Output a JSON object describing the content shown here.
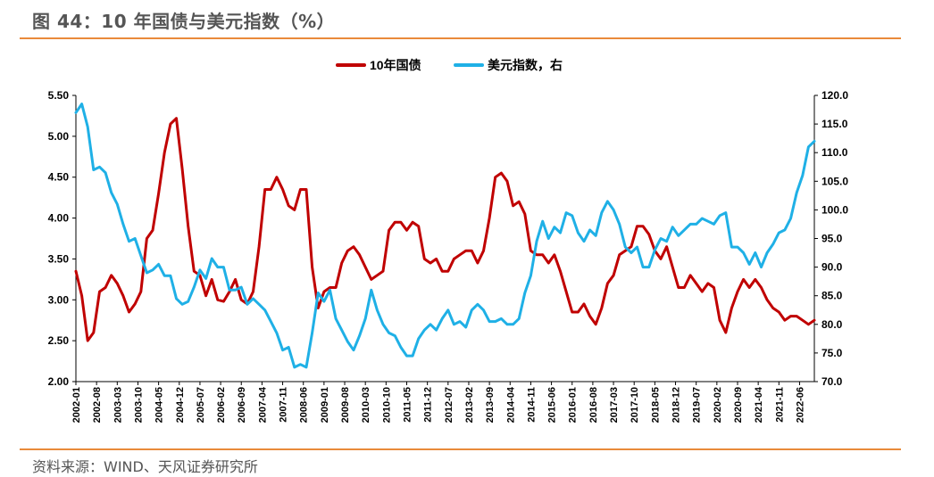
{
  "figure": {
    "title": "图 44：10 年国债与美元指数（%）",
    "source": "资料来源：WIND、天风证券研究所"
  },
  "colors": {
    "bond": "#c00000",
    "dxy": "#1fb0e6",
    "rule": "#e98a3a",
    "axis": "#000000"
  },
  "chart_data": {
    "type": "line",
    "legend_position": "top-center",
    "grid": false,
    "y_left": {
      "range": [
        2.0,
        5.5
      ],
      "ticks": [
        "2.00",
        "2.50",
        "3.00",
        "3.50",
        "4.00",
        "4.50",
        "5.00",
        "5.50"
      ]
    },
    "y_right": {
      "range": [
        70.0,
        120.0
      ],
      "ticks": [
        "70.0",
        "75.0",
        "80.0",
        "85.0",
        "90.0",
        "95.0",
        "100.0",
        "105.0",
        "110.0",
        "115.0",
        "120.0"
      ]
    },
    "x_ticks": [
      "2002-01",
      "2002-08",
      "2003-03",
      "2003-10",
      "2004-05",
      "2004-12",
      "2005-07",
      "2006-02",
      "2006-09",
      "2007-04",
      "2007-11",
      "2008-06",
      "2009-01",
      "2009-08",
      "2010-03",
      "2010-10",
      "2011-05",
      "2011-12",
      "2012-07",
      "2013-02",
      "2013-09",
      "2014-04",
      "2014-11",
      "2015-06",
      "2016-01",
      "2016-08",
      "2017-03",
      "2017-10",
      "2018-05",
      "2018-12",
      "2019-07",
      "2020-02",
      "2020-09",
      "2021-04",
      "2021-11",
      "2022-06"
    ],
    "series": [
      {
        "name": "10年国债",
        "axis": "left",
        "points": [
          [
            "2002-01",
            3.35
          ],
          [
            "2002-03",
            3.05
          ],
          [
            "2002-05",
            2.5
          ],
          [
            "2002-07",
            2.6
          ],
          [
            "2002-09",
            3.1
          ],
          [
            "2002-11",
            3.15
          ],
          [
            "2003-01",
            3.3
          ],
          [
            "2003-03",
            3.2
          ],
          [
            "2003-05",
            3.05
          ],
          [
            "2003-07",
            2.85
          ],
          [
            "2003-09",
            2.95
          ],
          [
            "2003-11",
            3.1
          ],
          [
            "2004-01",
            3.75
          ],
          [
            "2004-03",
            3.85
          ],
          [
            "2004-05",
            4.3
          ],
          [
            "2004-07",
            4.8
          ],
          [
            "2004-09",
            5.15
          ],
          [
            "2004-11",
            5.22
          ],
          [
            "2005-01",
            4.6
          ],
          [
            "2005-03",
            3.9
          ],
          [
            "2005-05",
            3.35
          ],
          [
            "2005-07",
            3.3
          ],
          [
            "2005-09",
            3.05
          ],
          [
            "2005-11",
            3.25
          ],
          [
            "2006-01",
            3.0
          ],
          [
            "2006-03",
            2.98
          ],
          [
            "2006-05",
            3.1
          ],
          [
            "2006-07",
            3.25
          ],
          [
            "2006-09",
            3.0
          ],
          [
            "2006-11",
            2.95
          ],
          [
            "2007-01",
            3.1
          ],
          [
            "2007-03",
            3.65
          ],
          [
            "2007-05",
            4.35
          ],
          [
            "2007-07",
            4.35
          ],
          [
            "2007-09",
            4.5
          ],
          [
            "2007-11",
            4.35
          ],
          [
            "2008-01",
            4.15
          ],
          [
            "2008-03",
            4.1
          ],
          [
            "2008-05",
            4.35
          ],
          [
            "2008-07",
            4.35
          ],
          [
            "2008-09",
            3.4
          ],
          [
            "2008-11",
            2.9
          ],
          [
            "2009-01",
            3.1
          ],
          [
            "2009-03",
            3.15
          ],
          [
            "2009-05",
            3.15
          ],
          [
            "2009-07",
            3.45
          ],
          [
            "2009-09",
            3.6
          ],
          [
            "2009-11",
            3.65
          ],
          [
            "2010-01",
            3.55
          ],
          [
            "2010-03",
            3.4
          ],
          [
            "2010-05",
            3.25
          ],
          [
            "2010-07",
            3.3
          ],
          [
            "2010-09",
            3.35
          ],
          [
            "2010-11",
            3.85
          ],
          [
            "2011-01",
            3.95
          ],
          [
            "2011-03",
            3.95
          ],
          [
            "2011-05",
            3.85
          ],
          [
            "2011-07",
            3.95
          ],
          [
            "2011-09",
            3.9
          ],
          [
            "2011-11",
            3.5
          ],
          [
            "2012-01",
            3.45
          ],
          [
            "2012-03",
            3.5
          ],
          [
            "2012-05",
            3.35
          ],
          [
            "2012-07",
            3.35
          ],
          [
            "2012-09",
            3.5
          ],
          [
            "2012-11",
            3.55
          ],
          [
            "2013-01",
            3.6
          ],
          [
            "2013-03",
            3.6
          ],
          [
            "2013-05",
            3.45
          ],
          [
            "2013-07",
            3.6
          ],
          [
            "2013-09",
            4.0
          ],
          [
            "2013-11",
            4.5
          ],
          [
            "2014-01",
            4.55
          ],
          [
            "2014-03",
            4.45
          ],
          [
            "2014-05",
            4.15
          ],
          [
            "2014-07",
            4.2
          ],
          [
            "2014-09",
            4.05
          ],
          [
            "2014-11",
            3.6
          ],
          [
            "2015-01",
            3.55
          ],
          [
            "2015-03",
            3.55
          ],
          [
            "2015-05",
            3.45
          ],
          [
            "2015-07",
            3.55
          ],
          [
            "2015-09",
            3.35
          ],
          [
            "2015-11",
            3.1
          ],
          [
            "2016-01",
            2.85
          ],
          [
            "2016-03",
            2.85
          ],
          [
            "2016-05",
            2.95
          ],
          [
            "2016-07",
            2.8
          ],
          [
            "2016-09",
            2.7
          ],
          [
            "2016-11",
            2.9
          ],
          [
            "2017-01",
            3.2
          ],
          [
            "2017-03",
            3.3
          ],
          [
            "2017-05",
            3.55
          ],
          [
            "2017-07",
            3.6
          ],
          [
            "2017-09",
            3.65
          ],
          [
            "2017-11",
            3.9
          ],
          [
            "2018-01",
            3.9
          ],
          [
            "2018-03",
            3.8
          ],
          [
            "2018-05",
            3.6
          ],
          [
            "2018-07",
            3.5
          ],
          [
            "2018-09",
            3.65
          ],
          [
            "2018-11",
            3.4
          ],
          [
            "2019-01",
            3.15
          ],
          [
            "2019-03",
            3.15
          ],
          [
            "2019-05",
            3.3
          ],
          [
            "2019-07",
            3.2
          ],
          [
            "2019-09",
            3.1
          ],
          [
            "2019-11",
            3.2
          ],
          [
            "2020-01",
            3.15
          ],
          [
            "2020-03",
            2.75
          ],
          [
            "2020-05",
            2.6
          ],
          [
            "2020-07",
            2.9
          ],
          [
            "2020-09",
            3.1
          ],
          [
            "2020-11",
            3.25
          ],
          [
            "2021-01",
            3.15
          ],
          [
            "2021-03",
            3.25
          ],
          [
            "2021-05",
            3.15
          ],
          [
            "2021-07",
            3.0
          ],
          [
            "2021-09",
            2.9
          ],
          [
            "2021-11",
            2.85
          ],
          [
            "2022-01",
            2.75
          ],
          [
            "2022-03",
            2.8
          ],
          [
            "2022-05",
            2.8
          ],
          [
            "2022-07",
            2.75
          ],
          [
            "2022-09",
            2.7
          ],
          [
            "2022-11",
            2.75
          ]
        ]
      },
      {
        "name": "美元指数，右",
        "axis": "right",
        "points": [
          [
            "2002-01",
            117.0
          ],
          [
            "2002-03",
            118.5
          ],
          [
            "2002-05",
            114.5
          ],
          [
            "2002-07",
            107.0
          ],
          [
            "2002-09",
            107.5
          ],
          [
            "2002-11",
            106.5
          ],
          [
            "2003-01",
            103.0
          ],
          [
            "2003-03",
            101.0
          ],
          [
            "2003-05",
            97.5
          ],
          [
            "2003-07",
            94.5
          ],
          [
            "2003-09",
            95.0
          ],
          [
            "2003-11",
            92.0
          ],
          [
            "2004-01",
            89.0
          ],
          [
            "2004-03",
            89.5
          ],
          [
            "2004-05",
            90.5
          ],
          [
            "2004-07",
            88.5
          ],
          [
            "2004-09",
            88.5
          ],
          [
            "2004-11",
            84.5
          ],
          [
            "2005-01",
            83.5
          ],
          [
            "2005-03",
            84.0
          ],
          [
            "2005-05",
            86.5
          ],
          [
            "2005-07",
            89.5
          ],
          [
            "2005-09",
            88.0
          ],
          [
            "2005-11",
            91.5
          ],
          [
            "2006-01",
            90.0
          ],
          [
            "2006-03",
            90.0
          ],
          [
            "2006-05",
            86.0
          ],
          [
            "2006-07",
            86.0
          ],
          [
            "2006-09",
            86.5
          ],
          [
            "2006-11",
            83.5
          ],
          [
            "2007-01",
            84.5
          ],
          [
            "2007-03",
            83.5
          ],
          [
            "2007-05",
            82.5
          ],
          [
            "2007-07",
            80.5
          ],
          [
            "2007-09",
            78.5
          ],
          [
            "2007-11",
            75.5
          ],
          [
            "2008-01",
            76.0
          ],
          [
            "2008-03",
            72.5
          ],
          [
            "2008-05",
            73.0
          ],
          [
            "2008-07",
            72.5
          ],
          [
            "2008-09",
            78.5
          ],
          [
            "2008-11",
            85.5
          ],
          [
            "2009-01",
            84.0
          ],
          [
            "2009-03",
            86.0
          ],
          [
            "2009-05",
            81.0
          ],
          [
            "2009-07",
            79.0
          ],
          [
            "2009-09",
            77.0
          ],
          [
            "2009-11",
            75.5
          ],
          [
            "2010-01",
            78.0
          ],
          [
            "2010-03",
            81.0
          ],
          [
            "2010-05",
            86.0
          ],
          [
            "2010-07",
            82.5
          ],
          [
            "2010-09",
            80.0
          ],
          [
            "2010-11",
            78.5
          ],
          [
            "2011-01",
            78.0
          ],
          [
            "2011-03",
            76.0
          ],
          [
            "2011-05",
            74.5
          ],
          [
            "2011-07",
            74.5
          ],
          [
            "2011-09",
            77.5
          ],
          [
            "2011-11",
            79.0
          ],
          [
            "2012-01",
            80.0
          ],
          [
            "2012-03",
            79.0
          ],
          [
            "2012-05",
            81.0
          ],
          [
            "2012-07",
            82.5
          ],
          [
            "2012-09",
            80.0
          ],
          [
            "2012-11",
            80.5
          ],
          [
            "2013-01",
            79.5
          ],
          [
            "2013-03",
            82.5
          ],
          [
            "2013-05",
            83.5
          ],
          [
            "2013-07",
            82.5
          ],
          [
            "2013-09",
            80.5
          ],
          [
            "2013-11",
            80.5
          ],
          [
            "2014-01",
            81.0
          ],
          [
            "2014-03",
            80.0
          ],
          [
            "2014-05",
            80.0
          ],
          [
            "2014-07",
            81.0
          ],
          [
            "2014-09",
            85.5
          ],
          [
            "2014-11",
            88.5
          ],
          [
            "2015-01",
            94.5
          ],
          [
            "2015-03",
            98.0
          ],
          [
            "2015-05",
            95.0
          ],
          [
            "2015-07",
            97.0
          ],
          [
            "2015-09",
            96.0
          ],
          [
            "2015-11",
            99.5
          ],
          [
            "2016-01",
            99.0
          ],
          [
            "2016-03",
            96.0
          ],
          [
            "2016-05",
            94.5
          ],
          [
            "2016-07",
            96.5
          ],
          [
            "2016-09",
            95.5
          ],
          [
            "2016-11",
            99.5
          ],
          [
            "2017-01",
            101.5
          ],
          [
            "2017-03",
            100.0
          ],
          [
            "2017-05",
            97.5
          ],
          [
            "2017-07",
            93.5
          ],
          [
            "2017-09",
            92.5
          ],
          [
            "2017-11",
            93.5
          ],
          [
            "2018-01",
            90.0
          ],
          [
            "2018-03",
            90.0
          ],
          [
            "2018-05",
            93.0
          ],
          [
            "2018-07",
            95.0
          ],
          [
            "2018-09",
            94.5
          ],
          [
            "2018-11",
            97.0
          ],
          [
            "2019-01",
            95.5
          ],
          [
            "2019-03",
            96.5
          ],
          [
            "2019-05",
            97.5
          ],
          [
            "2019-07",
            97.5
          ],
          [
            "2019-09",
            98.5
          ],
          [
            "2019-11",
            98.0
          ],
          [
            "2020-01",
            97.5
          ],
          [
            "2020-03",
            99.0
          ],
          [
            "2020-05",
            99.5
          ],
          [
            "2020-07",
            93.5
          ],
          [
            "2020-09",
            93.5
          ],
          [
            "2020-11",
            92.5
          ],
          [
            "2021-01",
            90.5
          ],
          [
            "2021-03",
            92.5
          ],
          [
            "2021-05",
            90.0
          ],
          [
            "2021-07",
            92.5
          ],
          [
            "2021-09",
            94.0
          ],
          [
            "2021-11",
            96.0
          ],
          [
            "2022-01",
            96.5
          ],
          [
            "2022-03",
            98.5
          ],
          [
            "2022-05",
            103.0
          ],
          [
            "2022-07",
            106.0
          ],
          [
            "2022-09",
            111.0
          ],
          [
            "2022-11",
            112.0
          ]
        ]
      }
    ]
  }
}
